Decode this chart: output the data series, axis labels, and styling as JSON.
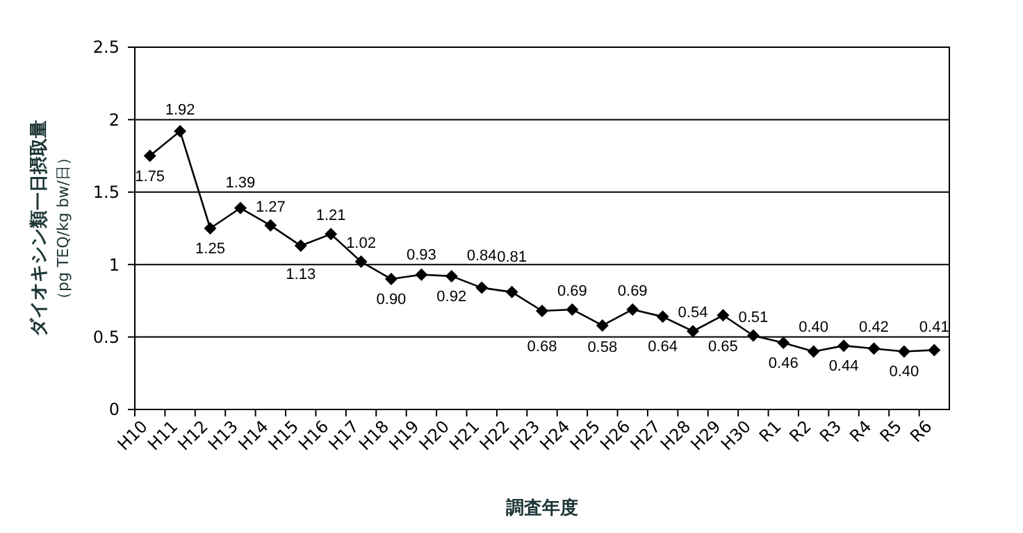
{
  "chart_data": {
    "type": "line",
    "xlabel": "調査年度",
    "ylabel": "ダイオキシン類一日摂取量（pg TEQ/kg bw/日）",
    "categories": [
      "H10",
      "H11",
      "H12",
      "H13",
      "H14",
      "H15",
      "H16",
      "H17",
      "H18",
      "H19",
      "H20",
      "H21",
      "H22",
      "H23",
      "H24",
      "H25",
      "H26",
      "H27",
      "H28",
      "H29",
      "H30",
      "R1",
      "R2",
      "R3",
      "R4",
      "R5",
      "R6"
    ],
    "series": [
      {
        "color": "#000000",
        "values": [
          1.75,
          1.92,
          1.25,
          1.39,
          1.27,
          1.13,
          1.21,
          1.02,
          0.9,
          0.93,
          0.92,
          0.84,
          0.81,
          0.68,
          0.69,
          0.58,
          0.69,
          0.64,
          0.54,
          0.65,
          0.51,
          0.46,
          0.4,
          0.44,
          0.42,
          0.4,
          0.41
        ],
        "value_labels": [
          "1.75",
          "1.92",
          "1.25",
          "1.39",
          "1.27",
          "1.13",
          "1.21",
          "1.02",
          "0.90",
          "0.93",
          "0.92",
          "0.84",
          "0.81",
          "0.68",
          "0.69",
          "0.58",
          "0.69",
          "0.64",
          "0.54",
          "0.65",
          "0.51",
          "0.46",
          "0.40",
          "0.44",
          "0.42",
          "0.40",
          "0.41"
        ]
      }
    ],
    "ylim": [
      0,
      2.5
    ],
    "yticks": [
      0,
      0.5,
      1,
      1.5,
      2,
      2.5
    ],
    "grid": "y",
    "marker": "diamond",
    "line_style": "solid"
  }
}
